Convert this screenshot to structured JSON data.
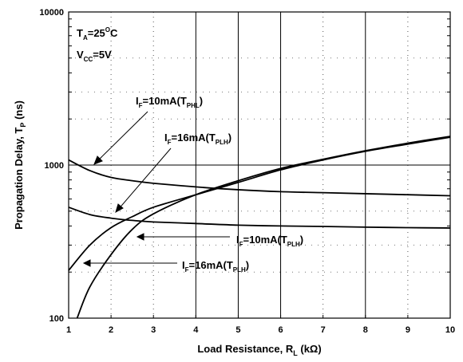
{
  "chart_data": {
    "type": "line",
    "title": "",
    "xlabel": "Load Resistance, R",
    "xlabel_sub": "L",
    "xlabel_unit": " (kΩ)",
    "ylabel": "Propagation Delay, T",
    "ylabel_sub": "P",
    "ylabel_unit": " (ns)",
    "xlim": [
      1,
      10
    ],
    "ylim": [
      100,
      10000
    ],
    "yscale": "log",
    "x_ticks": [
      "1",
      "2",
      "3",
      "4",
      "5",
      "6",
      "7",
      "8",
      "9",
      "10"
    ],
    "y_ticks": [
      "100",
      "1000",
      "10000"
    ],
    "conditions": [
      {
        "main": "T",
        "sub": "A",
        "rest": "=25",
        "sup": "O",
        "tail": "C"
      },
      {
        "main": "V",
        "sub": "CC",
        "rest": "=5V",
        "sup": "",
        "tail": ""
      }
    ],
    "annotations": [
      {
        "main": "I",
        "sub": "F",
        "mid": "=10mA(T",
        "sub2": "PHL",
        "end": ")"
      },
      {
        "main": "I",
        "sub": "F",
        "mid": "=16mA(T",
        "sub2": "PLH",
        "end": ")"
      },
      {
        "main": "I",
        "sub": "F",
        "mid": "=10mA(T",
        "sub2": "PLH",
        "end": ")"
      },
      {
        "main": "I",
        "sub": "F",
        "mid": "=16mA(T",
        "sub2": "PLH",
        "end": ")"
      }
    ],
    "series": [
      {
        "x": [
          1,
          1.5,
          2,
          2.5,
          3,
          4,
          5,
          6,
          7,
          8,
          9,
          10
        ],
        "values": [
          1080,
          920,
          830,
          790,
          760,
          720,
          690,
          670,
          660,
          650,
          640,
          630
        ]
      },
      {
        "x": [
          1,
          1.5,
          2,
          2.5,
          3,
          4,
          5,
          6,
          7,
          8,
          9,
          10
        ],
        "values": [
          530,
          475,
          450,
          435,
          425,
          415,
          405,
          400,
          397,
          393,
          390,
          388
        ]
      },
      {
        "x": [
          1,
          1.5,
          2,
          2.5,
          3,
          4,
          5,
          6,
          7,
          8,
          9,
          10
        ],
        "values": [
          205,
          300,
          390,
          460,
          530,
          640,
          770,
          930,
          1080,
          1230,
          1370,
          1520
        ]
      },
      {
        "x": [
          1.2,
          1.5,
          2,
          2.5,
          3,
          4,
          5,
          6,
          7,
          8,
          9,
          10
        ],
        "values": [
          100,
          160,
          260,
          380,
          480,
          640,
          790,
          950,
          1090,
          1240,
          1390,
          1540
        ]
      }
    ]
  }
}
